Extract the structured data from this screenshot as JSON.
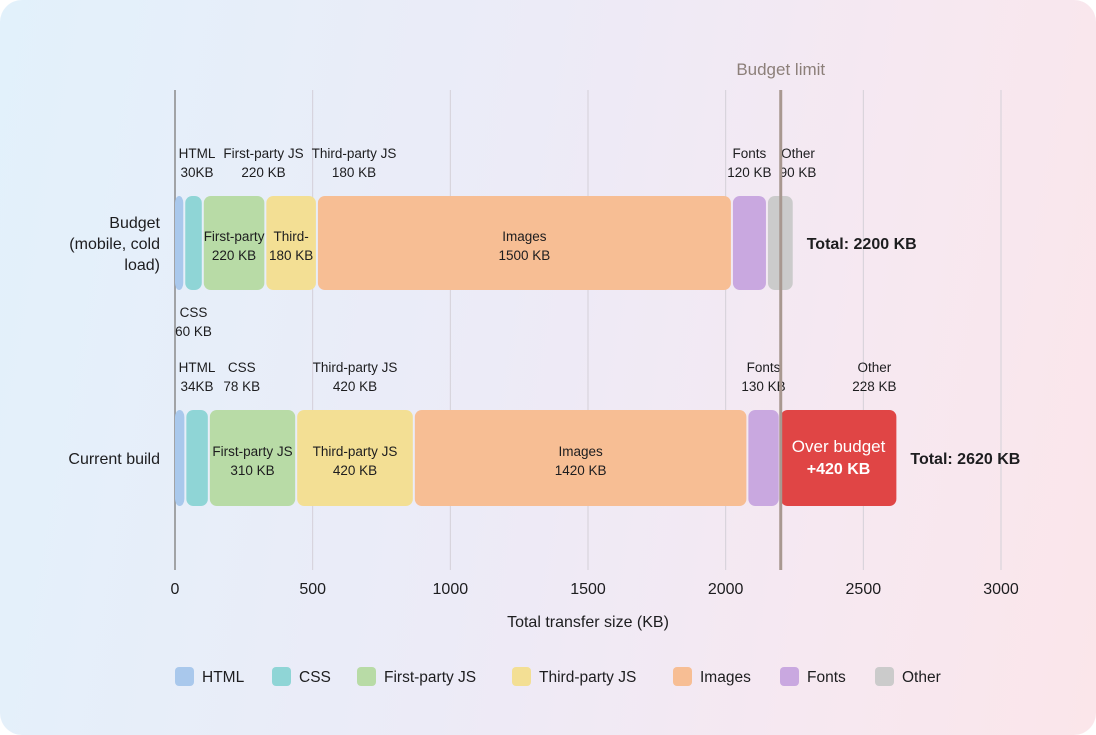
{
  "chart_data": {
    "type": "bar",
    "orientation": "horizontal",
    "stacked": true,
    "xlabel": "Total transfer size (KB)",
    "xlim": [
      0,
      3000
    ],
    "xticks": [
      0,
      500,
      1000,
      1500,
      2000,
      2500,
      3000
    ],
    "grid": true,
    "legend_position": "bottom",
    "reference_line": {
      "value": 2200,
      "label": "Budget limit",
      "color": "#a89890"
    },
    "categories": [
      "Budget (mobile, cold load)",
      "Current build"
    ],
    "series": [
      {
        "name": "HTML",
        "color": "#a9c8ec",
        "values": [
          30,
          34
        ]
      },
      {
        "name": "CSS",
        "color": "#8fd5d6",
        "values": [
          60,
          78
        ]
      },
      {
        "name": "First-party JS",
        "color": "#b8dba6",
        "values": [
          220,
          310
        ]
      },
      {
        "name": "Third-party JS",
        "color": "#f3df94",
        "values": [
          180,
          420
        ]
      },
      {
        "name": "Images",
        "color": "#f7be94",
        "values": [
          1500,
          1420
        ]
      },
      {
        "name": "Fonts",
        "color": "#c9a8e0",
        "values": [
          120,
          130
        ]
      },
      {
        "name": "Other",
        "color": "#cbcbcb",
        "values": [
          90,
          228
        ]
      }
    ],
    "bars": [
      {
        "category_lines": [
          "Budget",
          "(mobile, cold",
          "load)"
        ],
        "total_label": "Total: 2200 KB",
        "total": 2200,
        "outside_labels": [
          {
            "series": 0,
            "lines": [
              "HTML",
              "30KB"
            ],
            "pos": "above"
          },
          {
            "series": 2,
            "lines": [
              "First-party JS",
              "220 KB"
            ],
            "pos": "above"
          },
          {
            "series": 3,
            "lines": [
              "Third-party JS",
              "180 KB"
            ],
            "pos": "above"
          },
          {
            "series": 5,
            "lines": [
              "Fonts",
              "120 KB"
            ],
            "pos": "above"
          },
          {
            "series": 6,
            "lines": [
              "Other",
              "90 KB"
            ],
            "pos": "above"
          },
          {
            "series": 1,
            "lines": [
              "CSS",
              "60 KB"
            ],
            "pos": "below"
          }
        ],
        "inside_labels": [
          {
            "series": 2,
            "lines": [
              "First-party",
              "220 KB"
            ]
          },
          {
            "series": 3,
            "lines": [
              "Third-",
              "180 KB"
            ]
          },
          {
            "series": 4,
            "lines": [
              "Images",
              "1500 KB"
            ]
          }
        ]
      },
      {
        "category_lines": [
          "Current build"
        ],
        "total_label": "Total: 2620 KB",
        "total": 2620,
        "over_budget": {
          "value": 420,
          "lines": [
            "Over budget",
            "+420 KB"
          ],
          "color": "#e04545"
        },
        "outside_labels": [
          {
            "series": 0,
            "lines": [
              "HTML",
              "34KB"
            ],
            "pos": "above"
          },
          {
            "series": 1,
            "lines": [
              "CSS",
              "78 KB"
            ],
            "pos": "above"
          },
          {
            "series": 3,
            "lines": [
              "Third-party JS",
              "420 KB"
            ],
            "pos": "above"
          },
          {
            "series": 5,
            "lines": [
              "Fonts",
              "130 KB"
            ],
            "pos": "above"
          },
          {
            "series": 6,
            "lines": [
              "Other",
              "228 KB"
            ],
            "pos": "above"
          }
        ],
        "inside_labels": [
          {
            "series": 2,
            "lines": [
              "First-party JS",
              "310 KB"
            ]
          },
          {
            "series": 3,
            "lines": [
              "Third-party JS",
              "420 KB"
            ]
          },
          {
            "series": 4,
            "lines": [
              "Images",
              "1420 KB"
            ]
          }
        ]
      }
    ]
  }
}
